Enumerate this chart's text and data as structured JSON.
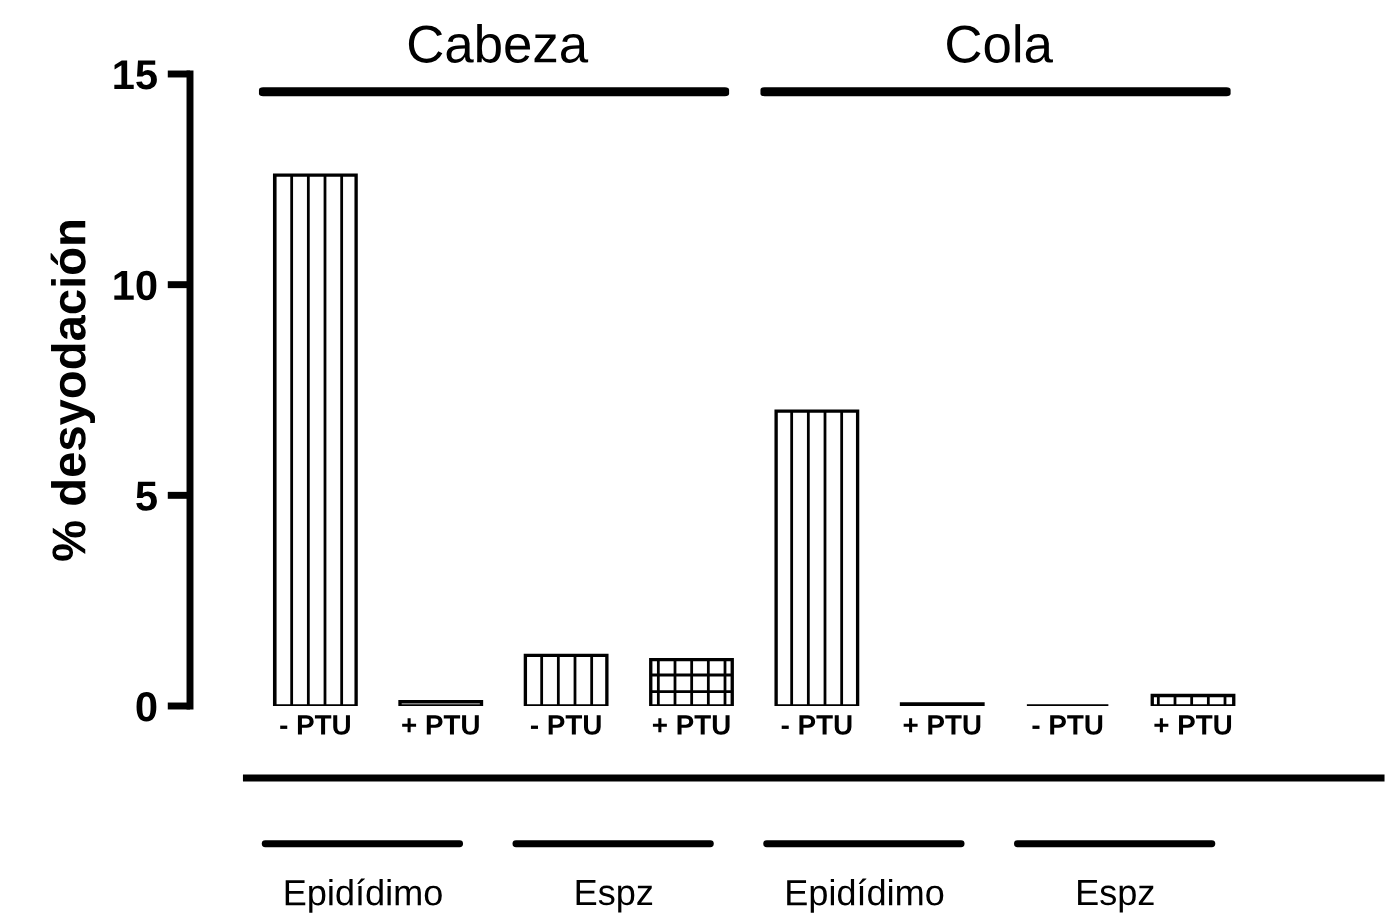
{
  "chart_data": {
    "type": "bar",
    "ylabel": "% desyodación",
    "categories": [
      "- PTU",
      "+ PTU",
      "- PTU",
      "+ PTU",
      "- PTU",
      "+ PTU",
      "- PTU",
      "+ PTU"
    ],
    "values": [
      12.6,
      0.1,
      1.2,
      1.1,
      7.0,
      0.05,
      0,
      0.25
    ],
    "color": "#000000",
    "ylim": [
      0,
      15
    ],
    "yticks": [
      0,
      5,
      10,
      15
    ],
    "grid": false,
    "annotations": [
      "Cabeza",
      "Cola",
      "Epidídimo",
      "Espz",
      "Epidídimo",
      "Espz"
    ]
  }
}
